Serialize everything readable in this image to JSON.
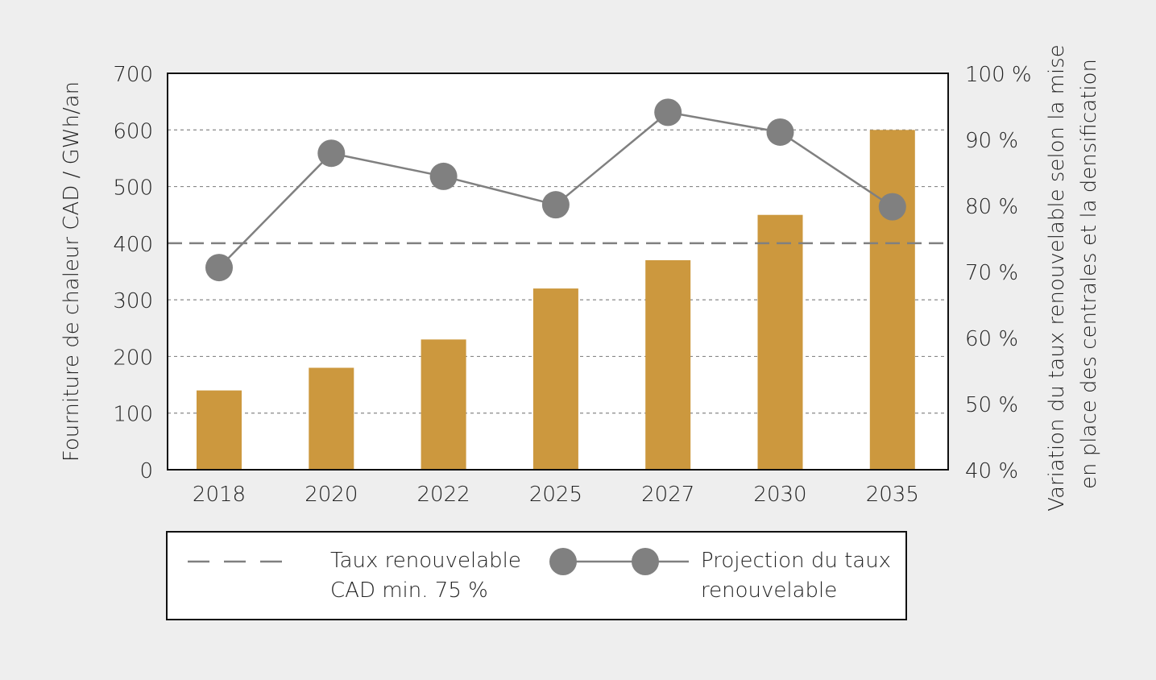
{
  "chart_data": {
    "type": "bar",
    "categories": [
      "2018",
      "2020",
      "2022",
      "2025",
      "2027",
      "2030",
      "2035"
    ],
    "series": [
      {
        "name": "Fourniture de chaleur CAD",
        "type": "bar",
        "axis": "left",
        "color": "#cc983e",
        "values": [
          140,
          180,
          230,
          320,
          370,
          450,
          600
        ]
      },
      {
        "name": "Projection du taux renouvelable",
        "type": "line",
        "axis": "right",
        "color": "#808080",
        "values": [
          70.6,
          87.9,
          84.4,
          80.1,
          94.1,
          91.1,
          79.8
        ]
      }
    ],
    "reference_line": {
      "name": "Taux renouvelable CAD min. 75 %",
      "value_left": 400,
      "value_right": 75,
      "color": "#808080"
    },
    "ylabel": "Fourniture de chaleur CAD / GWh/an",
    "ylim": [
      0,
      700
    ],
    "yticks": [
      "0",
      "100",
      "200",
      "300",
      "400",
      "500",
      "600",
      "700"
    ],
    "y2label_lines": [
      "Variation du taux renouvelable selon la mise",
      "en place des centrales et la densification"
    ],
    "y2lim": [
      40,
      100
    ],
    "y2ticks": [
      "40 %",
      "50 %",
      "60 %",
      "70 %",
      "80 %",
      "90 %",
      "100 %"
    ],
    "grid": true,
    "legend": {
      "placement": "bottom",
      "items": [
        {
          "lines": [
            "Taux renouvelable",
            "CAD min. 75 %"
          ]
        },
        {
          "lines": [
            "Projection du taux",
            "renouvelable"
          ]
        }
      ]
    }
  }
}
